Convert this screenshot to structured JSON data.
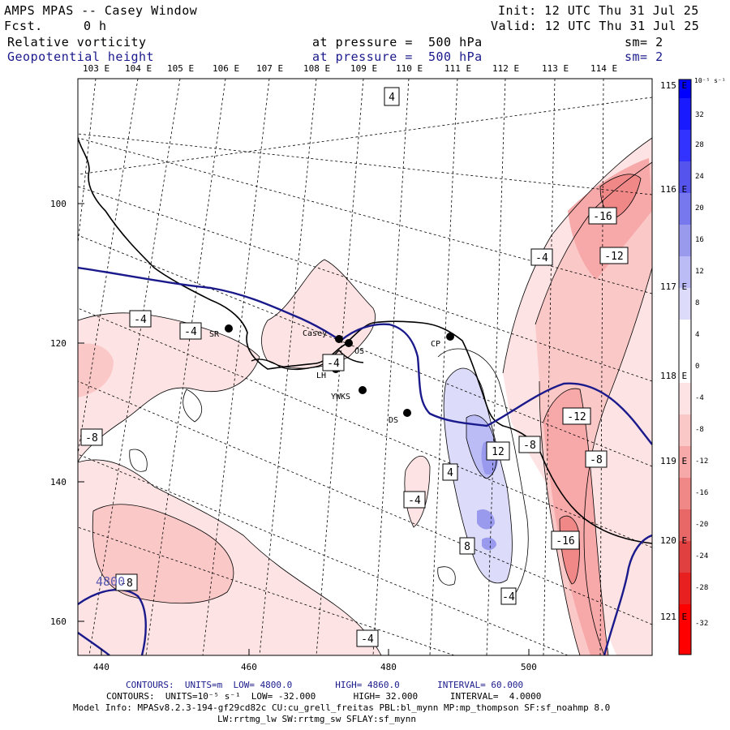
{
  "header": {
    "title": "AMPS MPAS -- Casey Window",
    "fcst_label": "Fcst.",
    "fcst_value": "0 h",
    "init": "Init: 12 UTC Thu 31 Jul 25",
    "valid": "Valid: 12 UTC Thu 31 Jul 25",
    "field1_name": "Relative vorticity",
    "field1_level": "at pressure =  500 hPa",
    "field1_sm": "sm= 2",
    "field2_name": "Geopotential height",
    "field2_level": "at pressure =  500 hPa",
    "field2_sm": "sm= 2"
  },
  "top_longitudes": [
    "103 E",
    "104 E",
    "105 E",
    "106 E",
    "107 E",
    "108 E",
    "109 E",
    "110 E",
    "111 E",
    "112 E",
    "113 E",
    "114 E"
  ],
  "right_longitudes": [
    "115 E",
    "116 E",
    "117 E",
    "118 E",
    "119 E",
    "120 E",
    "121 E"
  ],
  "x_axis": [
    "440",
    "460",
    "480",
    "500"
  ],
  "y_axis": [
    "100",
    "120",
    "140",
    "160"
  ],
  "colorbar": {
    "unit": "10⁻⁵ s⁻¹",
    "ticks": [
      "32",
      "28",
      "24",
      "20",
      "16",
      "12",
      "8",
      "4",
      "0",
      "-4",
      "-8",
      "-12",
      "-16",
      "-20",
      "-24",
      "-28",
      "-32"
    ],
    "colors": [
      "#0000ff",
      "#1a1aff",
      "#3333ff",
      "#5555ee",
      "#7777ee",
      "#9999ee",
      "#bbbbf5",
      "#dcdcfa",
      "#ffffff",
      "#fde3e3",
      "#fbc8c8",
      "#f7a8a8",
      "#f08888",
      "#e86868",
      "#e04040",
      "#e82020",
      "#ff0000"
    ]
  },
  "stations": [
    "SR",
    "Casey",
    "OS",
    "LH",
    "YWKS",
    "DS",
    "CP"
  ],
  "contour_labels": [
    "4",
    "-4",
    "-4",
    "-4",
    "-16",
    "-12",
    "-4",
    "-8",
    "-4",
    "-8",
    "-12",
    "12",
    "4",
    "-4",
    "-8",
    "8",
    "-16",
    "-8",
    "-4",
    "-4",
    "8"
  ],
  "height_label": "4800",
  "footer": {
    "line1": "CONTOURS:  UNITS=m  LOW= 4800.0        HIGH= 4860.0       INTERVAL= 60.000",
    "line2": "CONTOURS:  UNITS=10⁻⁵ s⁻¹  LOW= -32.000       HIGH= 32.000      INTERVAL=  4.0000",
    "line3": "Model Info: MPASv8.2.3-194-gf29cd82c CU:cu_grell_freitas PBL:bl_mynn MP:mp_thompson SF:sf_noahmp 8.0",
    "line4": "LW:rrtmg_lw SW:rrtmg_sw SFLAY:sf_mynn"
  }
}
